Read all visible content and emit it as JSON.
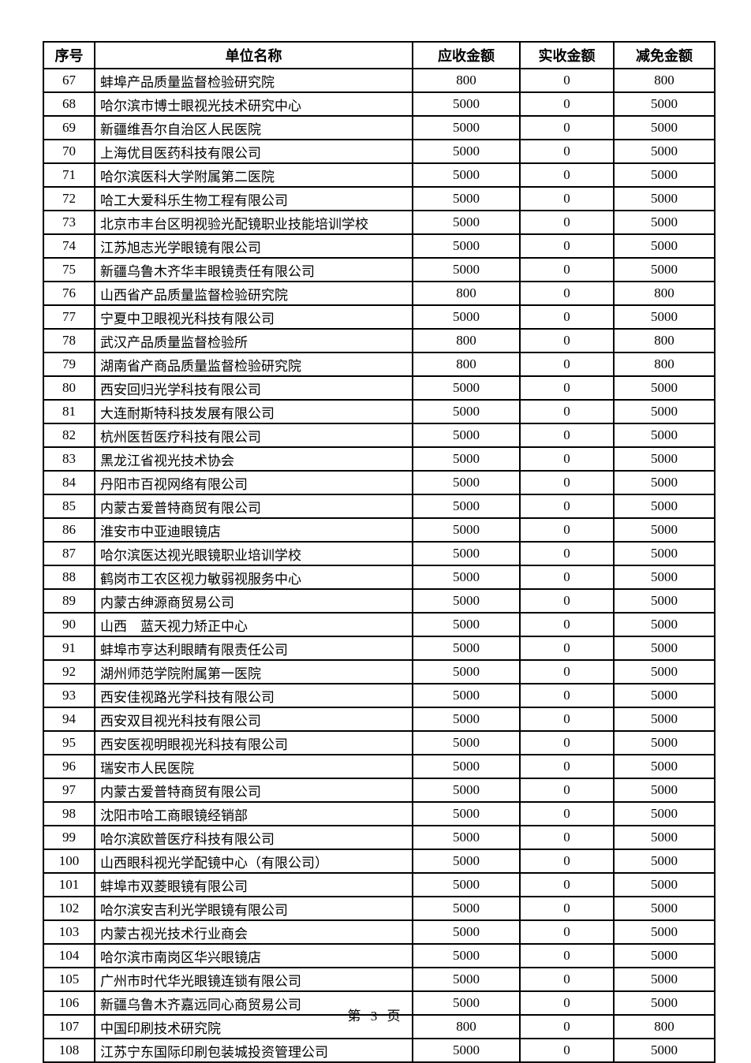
{
  "page": {
    "footer": "第 3 页"
  },
  "table": {
    "headers": [
      "序号",
      "单位名称",
      "应收金额",
      "实收金额",
      "减免金额"
    ],
    "rows": [
      [
        "67",
        "蚌埠产品质量监督检验研究院",
        "800",
        "0",
        "800"
      ],
      [
        "68",
        "哈尔滨市博士眼视光技术研究中心",
        "5000",
        "0",
        "5000"
      ],
      [
        "69",
        "新疆维吾尔自治区人民医院",
        "5000",
        "0",
        "5000"
      ],
      [
        "70",
        "上海优目医药科技有限公司",
        "5000",
        "0",
        "5000"
      ],
      [
        "71",
        "哈尔滨医科大学附属第二医院",
        "5000",
        "0",
        "5000"
      ],
      [
        "72",
        "哈工大爱科乐生物工程有限公司",
        "5000",
        "0",
        "5000"
      ],
      [
        "73",
        "北京市丰台区明视验光配镜职业技能培训学校",
        "5000",
        "0",
        "5000"
      ],
      [
        "74",
        "江苏旭志光学眼镜有限公司",
        "5000",
        "0",
        "5000"
      ],
      [
        "75",
        "新疆乌鲁木齐华丰眼镜责任有限公司",
        "5000",
        "0",
        "5000"
      ],
      [
        "76",
        "山西省产品质量监督检验研究院",
        "800",
        "0",
        "800"
      ],
      [
        "77",
        "宁夏中卫眼视光科技有限公司",
        "5000",
        "0",
        "5000"
      ],
      [
        "78",
        "武汉产品质量监督检验所",
        "800",
        "0",
        "800"
      ],
      [
        "79",
        "湖南省产商品质量监督检验研究院",
        "800",
        "0",
        "800"
      ],
      [
        "80",
        "西安回归光学科技有限公司",
        "5000",
        "0",
        "5000"
      ],
      [
        "81",
        "大连耐斯特科技发展有限公司",
        "5000",
        "0",
        "5000"
      ],
      [
        "82",
        "杭州医哲医疗科技有限公司",
        "5000",
        "0",
        "5000"
      ],
      [
        "83",
        "黑龙江省视光技术协会",
        "5000",
        "0",
        "5000"
      ],
      [
        "84",
        "丹阳市百视网络有限公司",
        "5000",
        "0",
        "5000"
      ],
      [
        "85",
        "内蒙古爱普特商贸有限公司",
        "5000",
        "0",
        "5000"
      ],
      [
        "86",
        "淮安市中亚迪眼镜店",
        "5000",
        "0",
        "5000"
      ],
      [
        "87",
        "哈尔滨医达视光眼镜职业培训学校",
        "5000",
        "0",
        "5000"
      ],
      [
        "88",
        "鹤岗市工农区视力敏弱视服务中心",
        "5000",
        "0",
        "5000"
      ],
      [
        "89",
        "内蒙古绅源商贸易公司",
        "5000",
        "0",
        "5000"
      ],
      [
        "90",
        "山西　蓝天视力矫正中心",
        "5000",
        "0",
        "5000"
      ],
      [
        "91",
        "蚌埠市亨达利眼睛有限责任公司",
        "5000",
        "0",
        "5000"
      ],
      [
        "92",
        "湖州师范学院附属第一医院",
        "5000",
        "0",
        "5000"
      ],
      [
        "93",
        "西安佳视路光学科技有限公司",
        "5000",
        "0",
        "5000"
      ],
      [
        "94",
        "西安双目视光科技有限公司",
        "5000",
        "0",
        "5000"
      ],
      [
        "95",
        "西安医视明眼视光科技有限公司",
        "5000",
        "0",
        "5000"
      ],
      [
        "96",
        "瑞安市人民医院",
        "5000",
        "0",
        "5000"
      ],
      [
        "97",
        "内蒙古爱普特商贸有限公司",
        "5000",
        "0",
        "5000"
      ],
      [
        "98",
        "沈阳市哈工商眼镜经销部",
        "5000",
        "0",
        "5000"
      ],
      [
        "99",
        "哈尔滨欧普医疗科技有限公司",
        "5000",
        "0",
        "5000"
      ],
      [
        "100",
        "山西眼科视光学配镜中心（有限公司）",
        "5000",
        "0",
        "5000"
      ],
      [
        "101",
        "蚌埠市双菱眼镜有限公司",
        "5000",
        "0",
        "5000"
      ],
      [
        "102",
        "哈尔滨安吉利光学眼镜有限公司",
        "5000",
        "0",
        "5000"
      ],
      [
        "103",
        "内蒙古视光技术行业商会",
        "5000",
        "0",
        "5000"
      ],
      [
        "104",
        "哈尔滨市南岗区华兴眼镜店",
        "5000",
        "0",
        "5000"
      ],
      [
        "105",
        "广州市时代华光眼镜连锁有限公司",
        "5000",
        "0",
        "5000"
      ],
      [
        "106",
        "新疆乌鲁木齐嘉远同心商贸易公司",
        "5000",
        "0",
        "5000"
      ],
      [
        "107",
        "中国印刷技术研究院",
        "800",
        "0",
        "800"
      ],
      [
        "108",
        "江苏宁东国际印刷包装城投资管理公司",
        "5000",
        "0",
        "5000"
      ]
    ]
  }
}
